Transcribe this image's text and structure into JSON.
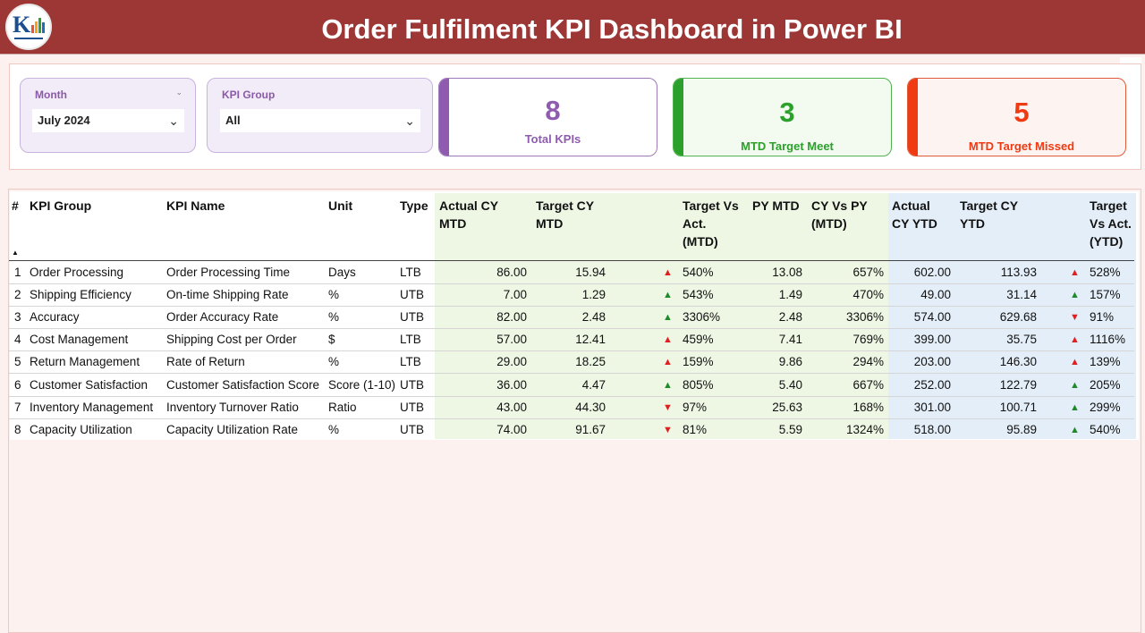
{
  "header": {
    "title": "Order Fulfilment KPI Dashboard in Power BI"
  },
  "menu": {
    "more_label": "..."
  },
  "filters": {
    "month": {
      "title": "Month",
      "value": "July 2024"
    },
    "kpi_group": {
      "title": "KPI Group",
      "value": "All"
    }
  },
  "cards": {
    "total": {
      "value": "8",
      "label": "Total KPIs",
      "color": "#8e5bb0"
    },
    "met": {
      "value": "3",
      "label": "MTD Target Meet",
      "color": "#2ba02b"
    },
    "missed": {
      "value": "5",
      "label": "MTD Target Missed",
      "color": "#ef3a12"
    }
  },
  "table": {
    "columns": {
      "num": "#",
      "group": "KPI Group",
      "name": "KPI Name",
      "unit": "Unit",
      "type": "Type",
      "actual_mtd": [
        "Actual CY",
        "MTD"
      ],
      "target_mtd": [
        "Target CY",
        "MTD"
      ],
      "tva_mtd": [
        "Target Vs",
        "Act.",
        "(MTD)"
      ],
      "py_mtd": [
        "PY MTD"
      ],
      "cy_py": [
        "CY Vs PY",
        "(MTD)"
      ],
      "actual_ytd": [
        "Actual",
        "CY YTD"
      ],
      "target_ytd": [
        "Target CY",
        "YTD"
      ],
      "tva_ytd": [
        "Target",
        "Vs Act.",
        "(YTD)"
      ]
    },
    "rows": [
      {
        "num": "1",
        "group": "Order Processing",
        "name": "Order Processing Time",
        "unit": "Days",
        "type": "LTB",
        "actual_mtd": "86.00",
        "target_mtd": "15.94",
        "mtd_icon": "up-red",
        "tva_mtd": "540%",
        "py_mtd": "13.08",
        "cy_py": "657%",
        "actual_ytd": "602.00",
        "target_ytd": "113.93",
        "ytd_icon": "up-red",
        "tva_ytd": "528%"
      },
      {
        "num": "2",
        "group": "Shipping Efficiency",
        "name": "On-time Shipping Rate",
        "unit": "%",
        "type": "UTB",
        "actual_mtd": "7.00",
        "target_mtd": "1.29",
        "mtd_icon": "up-green",
        "tva_mtd": "543%",
        "py_mtd": "1.49",
        "cy_py": "470%",
        "actual_ytd": "49.00",
        "target_ytd": "31.14",
        "ytd_icon": "up-green",
        "tva_ytd": "157%"
      },
      {
        "num": "3",
        "group": "Accuracy",
        "name": "Order Accuracy Rate",
        "unit": "%",
        "type": "UTB",
        "actual_mtd": "82.00",
        "target_mtd": "2.48",
        "mtd_icon": "up-green",
        "tva_mtd": "3306%",
        "py_mtd": "2.48",
        "cy_py": "3306%",
        "actual_ytd": "574.00",
        "target_ytd": "629.68",
        "ytd_icon": "down-red",
        "tva_ytd": "91%"
      },
      {
        "num": "4",
        "group": "Cost Management",
        "name": "Shipping Cost per Order",
        "unit": "$",
        "type": "LTB",
        "actual_mtd": "57.00",
        "target_mtd": "12.41",
        "mtd_icon": "up-red",
        "tva_mtd": "459%",
        "py_mtd": "7.41",
        "cy_py": "769%",
        "actual_ytd": "399.00",
        "target_ytd": "35.75",
        "ytd_icon": "up-red",
        "tva_ytd": "1116%"
      },
      {
        "num": "5",
        "group": "Return Management",
        "name": "Rate of Return",
        "unit": "%",
        "type": "LTB",
        "actual_mtd": "29.00",
        "target_mtd": "18.25",
        "mtd_icon": "up-red",
        "tva_mtd": "159%",
        "py_mtd": "9.86",
        "cy_py": "294%",
        "actual_ytd": "203.00",
        "target_ytd": "146.30",
        "ytd_icon": "up-red",
        "tva_ytd": "139%"
      },
      {
        "num": "6",
        "group": "Customer Satisfaction",
        "name": "Customer Satisfaction Score",
        "unit": "Score (1-10)",
        "type": "UTB",
        "actual_mtd": "36.00",
        "target_mtd": "4.47",
        "mtd_icon": "up-green",
        "tva_mtd": "805%",
        "py_mtd": "5.40",
        "cy_py": "667%",
        "actual_ytd": "252.00",
        "target_ytd": "122.79",
        "ytd_icon": "up-green",
        "tva_ytd": "205%"
      },
      {
        "num": "7",
        "group": "Inventory Management",
        "name": "Inventory Turnover Ratio",
        "unit": "Ratio",
        "type": "UTB",
        "actual_mtd": "43.00",
        "target_mtd": "44.30",
        "mtd_icon": "down-red",
        "tva_mtd": "97%",
        "py_mtd": "25.63",
        "cy_py": "168%",
        "actual_ytd": "301.00",
        "target_ytd": "100.71",
        "ytd_icon": "up-green",
        "tva_ytd": "299%"
      },
      {
        "num": "8",
        "group": "Capacity Utilization",
        "name": "Capacity Utilization Rate",
        "unit": "%",
        "type": "UTB",
        "actual_mtd": "74.00",
        "target_mtd": "91.67",
        "mtd_icon": "down-red",
        "tva_mtd": "81%",
        "py_mtd": "5.59",
        "cy_py": "1324%",
        "actual_ytd": "518.00",
        "target_ytd": "95.89",
        "ytd_icon": "up-green",
        "tva_ytd": "540%"
      }
    ]
  }
}
